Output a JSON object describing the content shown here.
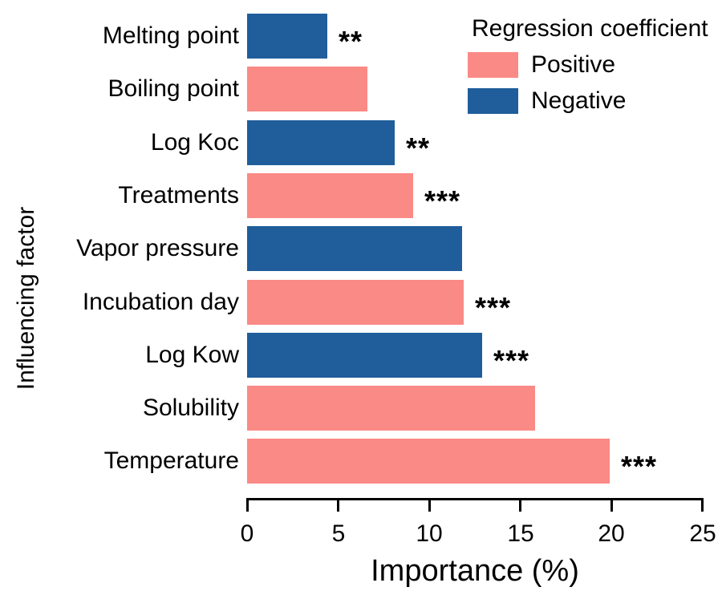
{
  "chart_data": {
    "type": "bar",
    "orientation": "horizontal",
    "title": "",
    "xlabel": "Importance (%)",
    "ylabel": "Influencing factor",
    "xlim": [
      0,
      25
    ],
    "x_ticks": [
      0,
      5,
      10,
      15,
      20,
      25
    ],
    "grid": false,
    "bar_order": "top-to-bottom",
    "bars": [
      {
        "category": "Melting point",
        "value": 4.4,
        "sign": "negative",
        "significance": "**"
      },
      {
        "category": "Boiling point",
        "value": 6.6,
        "sign": "positive",
        "significance": ""
      },
      {
        "category": "Log Koc",
        "value": 8.1,
        "sign": "negative",
        "significance": "**"
      },
      {
        "category": "Treatments",
        "value": 9.1,
        "sign": "positive",
        "significance": "***"
      },
      {
        "category": "Vapor pressure",
        "value": 11.8,
        "sign": "negative",
        "significance": ""
      },
      {
        "category": "Incubation day",
        "value": 11.9,
        "sign": "positive",
        "significance": "***"
      },
      {
        "category": "Log Kow",
        "value": 12.9,
        "sign": "negative",
        "significance": "***"
      },
      {
        "category": "Solubility",
        "value": 15.8,
        "sign": "positive",
        "significance": ""
      },
      {
        "category": "Temperature",
        "value": 19.9,
        "sign": "positive",
        "significance": "***"
      }
    ],
    "colors": {
      "positive": "#FA8A85",
      "negative": "#1F5D9B",
      "axis": "#000000",
      "text": "#000000"
    },
    "legend": {
      "title": "Regression coefficient",
      "position": "top-right",
      "items": [
        {
          "label": "Positive",
          "sign": "positive",
          "color": "#FA8A85"
        },
        {
          "label": "Negative",
          "sign": "negative",
          "color": "#1F5D9B"
        }
      ]
    }
  }
}
